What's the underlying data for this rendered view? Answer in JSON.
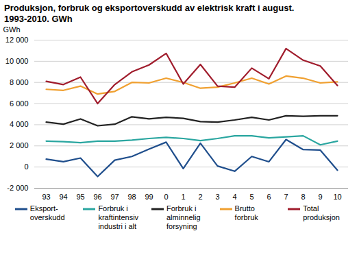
{
  "chart_data": {
    "type": "line",
    "title": "Produksjon, forbruk og eksportoverskudd av elektrisk kraft i august.\n1993-2010. GWh",
    "y_label": "GWh",
    "categories": [
      "93",
      "94",
      "95",
      "96",
      "97",
      "98",
      "99",
      "0",
      "1",
      "2",
      "3",
      "4",
      "5",
      "6",
      "7",
      "8",
      "9",
      "10"
    ],
    "series": [
      {
        "name": "Eksport-\noverskudd",
        "color": "#1f4e8c",
        "values": [
          750,
          500,
          850,
          -900,
          650,
          1000,
          1700,
          2350,
          -150,
          2250,
          100,
          -400,
          1000,
          500,
          2600,
          1650,
          1600,
          -300
        ]
      },
      {
        "name": "Forbruk i\nkraftintensiv\nindustri i alt",
        "color": "#2aa6a0",
        "values": [
          2450,
          2400,
          2300,
          2450,
          2450,
          2550,
          2700,
          2800,
          2700,
          2500,
          2700,
          2950,
          2950,
          2750,
          2850,
          2950,
          2100,
          2450
        ]
      },
      {
        "name": "Forbruk i\nalminnelig\nforsyning",
        "color": "#222222",
        "values": [
          4250,
          4050,
          4550,
          3900,
          4050,
          4750,
          4550,
          4700,
          4600,
          4300,
          4250,
          4450,
          4700,
          4450,
          4850,
          4800,
          4850,
          4850
        ]
      },
      {
        "name": "Brutto\nforbruk",
        "color": "#f0a030",
        "values": [
          7350,
          7250,
          7650,
          6900,
          7150,
          8000,
          7950,
          8400,
          8000,
          7450,
          7550,
          7950,
          8400,
          7850,
          8600,
          8400,
          7950,
          8050
        ]
      },
      {
        "name": "Total\nproduksjon",
        "color": "#a01c2c",
        "values": [
          8100,
          7800,
          8500,
          6000,
          7800,
          9000,
          9650,
          10750,
          7850,
          9700,
          7650,
          7550,
          9350,
          8350,
          11200,
          10100,
          9550,
          7700
        ]
      }
    ],
    "ylim": [
      -2000,
      12000
    ],
    "yticks": [
      {
        "value": -2000,
        "label": "-2 000"
      },
      0,
      {
        "value": 2000,
        "label": "2 000"
      },
      {
        "value": 4000,
        "label": "4 000"
      },
      {
        "value": 6000,
        "label": "6 000"
      },
      {
        "value": 8000,
        "label": "8 000"
      },
      {
        "value": 10000,
        "label": "10 000"
      },
      {
        "value": 12000,
        "label": "12 000"
      }
    ],
    "grid": true,
    "legend": "bottom"
  }
}
